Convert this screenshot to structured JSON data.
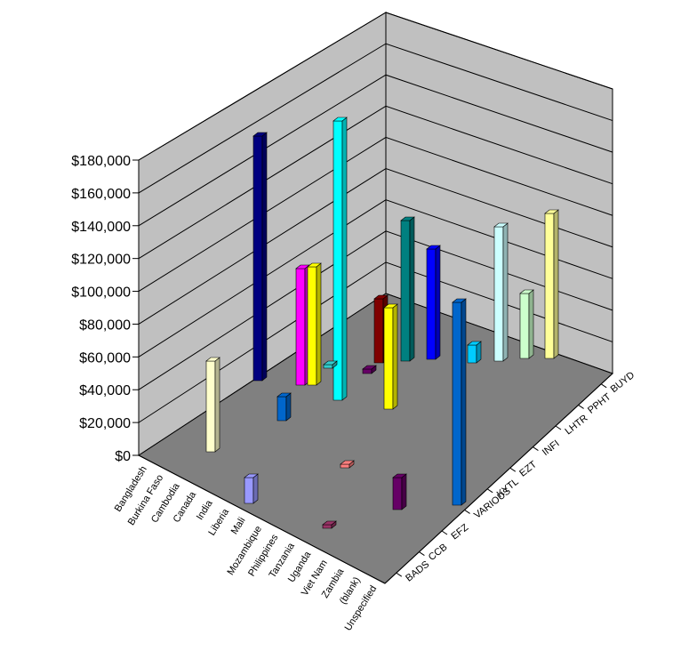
{
  "chart_data": {
    "type": "bar3d",
    "title": "",
    "y_ticks": [
      "$0",
      "$20,000",
      "$40,000",
      "$60,000",
      "$80,000",
      "$100,000",
      "$120,000",
      "$140,000",
      "$160,000",
      "$180,000"
    ],
    "ylim": [
      0,
      180000
    ],
    "grid": true,
    "x_categories": [
      "Bangladesh",
      "Burkina Faso",
      "Cambodia",
      "Canada",
      "India",
      "Liberia",
      "Mali",
      "Mozambique",
      "Philippines",
      "Tanzania",
      "Uganda",
      "Viet Nam",
      "Zambia",
      "(blank)",
      "Unspecified"
    ],
    "depth_series": [
      "BADS",
      "CCB",
      "EFZ",
      "VARIOUS",
      "KYTL",
      "EZT",
      "INFI",
      "LHTR",
      "PPHT",
      "BUYD"
    ],
    "bars": [
      {
        "x": "Bangladesh",
        "series": "PPHT",
        "value": 58000,
        "color": "#FFFFCC"
      },
      {
        "x": "Burkina Faso",
        "series": "BUYD",
        "value": 180000,
        "color": "#000080"
      },
      {
        "x": "Mali",
        "series": "BADS",
        "value": 18000,
        "color": "#9999FF"
      },
      {
        "x": "Liberia",
        "series": "LHTR",
        "value": 16000,
        "color": "#0066CC"
      },
      {
        "x": "Canada",
        "series": "BUYD",
        "value": 72000,
        "color": "#FF00FF"
      },
      {
        "x": "Canada",
        "series": "BUYD",
        "value": 74000,
        "color": "#FFFF00"
      },
      {
        "x": "Cambodia",
        "series": "BUYD",
        "value": 160000,
        "color": "#00FFFF"
      },
      {
        "x": "Cambodia",
        "series": "BUYD",
        "value": 2000,
        "color": "#33CCCC"
      },
      {
        "x": "Philippines",
        "series": "BUYD",
        "value": 40000,
        "color": "#800000"
      },
      {
        "x": "Tanzania",
        "series": "BUYD",
        "value": 82000,
        "color": "#008080"
      },
      {
        "x": "Mozambique",
        "series": "BUYD",
        "value": 3000,
        "color": "#660066"
      },
      {
        "x": "Philippines",
        "series": "PPHT",
        "value": 65000,
        "color": "#FFFF00"
      },
      {
        "x": "Viet Nam",
        "series": "BUYD",
        "value": 60000,
        "color": "#0000FF"
      },
      {
        "x": "Mozambique",
        "series": "KYTL",
        "value": 2000,
        "color": "#FF8080"
      },
      {
        "x": "Mozambique",
        "series": "BADS",
        "value": 2000,
        "color": "#993366"
      },
      {
        "x": "Viet Nam",
        "series": "BADS",
        "value": 18000,
        "color": "#660066"
      },
      {
        "x": "Viet Nam",
        "series": "LHTR",
        "value": 110000,
        "color": "#0066CC"
      },
      {
        "x": "Zambia",
        "series": "BUYD",
        "value": 10000,
        "color": "#00CCFF"
      },
      {
        "x": "(blank)",
        "series": "BUYD",
        "value": 75000,
        "color": "#CCFFFF"
      },
      {
        "x": "Unspecified",
        "series": "BUYD",
        "value": 36000,
        "color": "#CCFFCC"
      },
      {
        "x": "Unspecified",
        "series": "BUYD",
        "value": 76000,
        "color": "#FFFF99"
      }
    ]
  },
  "bar_layout": [
    {
      "bx": 232,
      "by": 508,
      "ty": 406
    },
    {
      "bx": 285,
      "by": 428,
      "ty": 153
    },
    {
      "bx": 275,
      "by": 566,
      "ty": 537
    },
    {
      "bx": 312,
      "by": 473,
      "ty": 446
    },
    {
      "bx": 333,
      "by": 433,
      "ty": 302
    },
    {
      "bx": 346,
      "by": 433,
      "ty": 300
    },
    {
      "bx": 375,
      "by": 450,
      "ty": 136
    },
    {
      "bx": 364,
      "by": 414,
      "ty": 410
    },
    {
      "bx": 421,
      "by": 408,
      "ty": 336
    },
    {
      "bx": 451,
      "by": 406,
      "ty": 248
    },
    {
      "bx": 408,
      "by": 420,
      "ty": 415
    },
    {
      "bx": 432,
      "by": 460,
      "ty": 346
    },
    {
      "bx": 480,
      "by": 404,
      "ty": 280
    },
    {
      "bx": 383,
      "by": 526,
      "ty": 522
    },
    {
      "bx": 363,
      "by": 594,
      "ty": 590
    },
    {
      "bx": 442,
      "by": 573,
      "ty": 537
    },
    {
      "bx": 509,
      "by": 568,
      "ty": 340
    },
    {
      "bx": 526,
      "by": 408,
      "ty": 388
    },
    {
      "bx": 556,
      "by": 406,
      "ty": 255
    },
    {
      "bx": 585,
      "by": 403,
      "ty": 330
    },
    {
      "bx": 613,
      "by": 403,
      "ty": 240
    }
  ]
}
